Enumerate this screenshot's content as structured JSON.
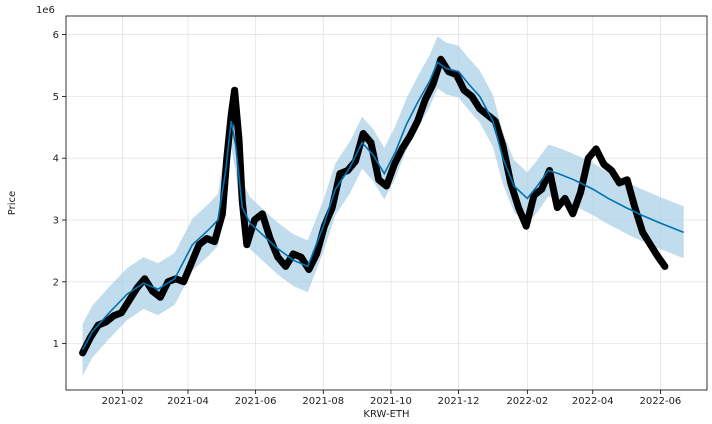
{
  "chart_data": {
    "type": "line",
    "title": "",
    "xlabel": "KRW-ETH",
    "ylabel": "Price",
    "y_multiplier_label": "1e6",
    "grid": true,
    "legend": "none",
    "x_range": [
      "2020-12-12",
      "2022-07-13"
    ],
    "ylim": [
      0.25,
      6.3
    ],
    "x_ticks": [
      {
        "date": "2021-02-01",
        "label": "2021-02"
      },
      {
        "date": "2021-04-01",
        "label": "2021-04"
      },
      {
        "date": "2021-06-01",
        "label": "2021-06"
      },
      {
        "date": "2021-08-01",
        "label": "2021-08"
      },
      {
        "date": "2021-10-01",
        "label": "2021-10"
      },
      {
        "date": "2021-12-01",
        "label": "2021-12"
      },
      {
        "date": "2022-02-01",
        "label": "2022-02"
      },
      {
        "date": "2022-04-01",
        "label": "2022-04"
      },
      {
        "date": "2022-06-01",
        "label": "2022-06"
      }
    ],
    "y_ticks": [
      {
        "value": 1,
        "label": "1"
      },
      {
        "value": 2,
        "label": "2"
      },
      {
        "value": 3,
        "label": "3"
      },
      {
        "value": 4,
        "label": "4"
      },
      {
        "value": 5,
        "label": "5"
      },
      {
        "value": 6,
        "label": "6"
      }
    ],
    "colors": {
      "observed": "#000000",
      "forecast": "#0072B2",
      "interval": "#a6cfe6",
      "grid": "#e3e3e3",
      "axes": "#000000"
    },
    "forecast_interval_halfwidth": 0.42,
    "forecast": {
      "x": [
        "2020-12-27",
        "2021-01-05",
        "2021-01-20",
        "2021-02-05",
        "2021-02-20",
        "2021-03-05",
        "2021-03-20",
        "2021-04-05",
        "2021-04-20",
        "2021-04-28",
        "2021-05-05",
        "2021-05-10",
        "2021-05-14",
        "2021-05-20",
        "2021-05-27",
        "2021-06-05",
        "2021-06-20",
        "2021-07-05",
        "2021-07-18",
        "2021-08-01",
        "2021-08-12",
        "2021-08-25",
        "2021-09-05",
        "2021-09-15",
        "2021-09-25",
        "2021-10-05",
        "2021-10-15",
        "2021-10-25",
        "2021-11-05",
        "2021-11-12",
        "2021-11-20",
        "2021-12-01",
        "2021-12-10",
        "2021-12-20",
        "2022-01-01",
        "2022-01-10",
        "2022-01-20",
        "2022-02-01",
        "2022-02-10",
        "2022-02-20",
        "2022-03-01",
        "2022-03-15",
        "2022-04-01",
        "2022-04-15",
        "2022-05-01",
        "2022-05-15",
        "2022-06-01",
        "2022-06-22"
      ],
      "y": [
        0.9,
        1.2,
        1.5,
        1.8,
        1.98,
        1.88,
        2.05,
        2.6,
        2.85,
        3.0,
        3.8,
        4.6,
        4.2,
        3.2,
        2.95,
        2.8,
        2.55,
        2.35,
        2.25,
        2.9,
        3.5,
        3.85,
        4.25,
        4.05,
        3.75,
        4.1,
        4.55,
        4.9,
        5.25,
        5.55,
        5.45,
        5.4,
        5.2,
        5.0,
        4.6,
        4.0,
        3.55,
        3.35,
        3.55,
        3.8,
        3.75,
        3.65,
        3.5,
        3.35,
        3.2,
        3.08,
        2.95,
        2.8
      ]
    },
    "observed": {
      "x": [
        "2020-12-27",
        "2021-01-03",
        "2021-01-10",
        "2021-01-17",
        "2021-01-24",
        "2021-01-31",
        "2021-02-07",
        "2021-02-14",
        "2021-02-21",
        "2021-02-28",
        "2021-03-07",
        "2021-03-14",
        "2021-03-21",
        "2021-03-28",
        "2021-04-04",
        "2021-04-11",
        "2021-04-18",
        "2021-04-25",
        "2021-05-02",
        "2021-05-06",
        "2021-05-10",
        "2021-05-13",
        "2021-05-17",
        "2021-05-20",
        "2021-05-24",
        "2021-05-31",
        "2021-06-07",
        "2021-06-14",
        "2021-06-21",
        "2021-06-28",
        "2021-07-05",
        "2021-07-12",
        "2021-07-19",
        "2021-07-26",
        "2021-08-02",
        "2021-08-09",
        "2021-08-16",
        "2021-08-23",
        "2021-08-30",
        "2021-09-06",
        "2021-09-13",
        "2021-09-20",
        "2021-09-27",
        "2021-10-04",
        "2021-10-11",
        "2021-10-18",
        "2021-10-25",
        "2021-11-01",
        "2021-11-08",
        "2021-11-15",
        "2021-11-22",
        "2021-11-29",
        "2021-12-06",
        "2021-12-13",
        "2021-12-20",
        "2021-12-27",
        "2022-01-03",
        "2022-01-10",
        "2022-01-17",
        "2022-01-24",
        "2022-01-31",
        "2022-02-07",
        "2022-02-14",
        "2022-02-21",
        "2022-02-28",
        "2022-03-07",
        "2022-03-14",
        "2022-03-21",
        "2022-03-28",
        "2022-04-04",
        "2022-04-11",
        "2022-04-18",
        "2022-04-25",
        "2022-05-02",
        "2022-05-09",
        "2022-05-16",
        "2022-05-23",
        "2022-05-30",
        "2022-06-05"
      ],
      "y": [
        0.85,
        1.1,
        1.3,
        1.35,
        1.45,
        1.5,
        1.7,
        1.9,
        2.05,
        1.85,
        1.75,
        2.0,
        2.05,
        2.0,
        2.3,
        2.6,
        2.7,
        2.65,
        3.1,
        4.0,
        4.7,
        5.1,
        4.3,
        3.3,
        2.6,
        3.0,
        3.1,
        2.7,
        2.4,
        2.25,
        2.45,
        2.4,
        2.2,
        2.45,
        2.9,
        3.2,
        3.75,
        3.8,
        3.95,
        4.4,
        4.25,
        3.65,
        3.55,
        3.9,
        4.15,
        4.35,
        4.6,
        4.95,
        5.2,
        5.6,
        5.4,
        5.35,
        5.1,
        5.0,
        4.8,
        4.7,
        4.6,
        4.2,
        3.6,
        3.2,
        2.9,
        3.4,
        3.5,
        3.8,
        3.2,
        3.35,
        3.1,
        3.45,
        4.0,
        4.15,
        3.9,
        3.8,
        3.6,
        3.65,
        3.2,
        2.8,
        2.6,
        2.4,
        2.25
      ]
    }
  }
}
